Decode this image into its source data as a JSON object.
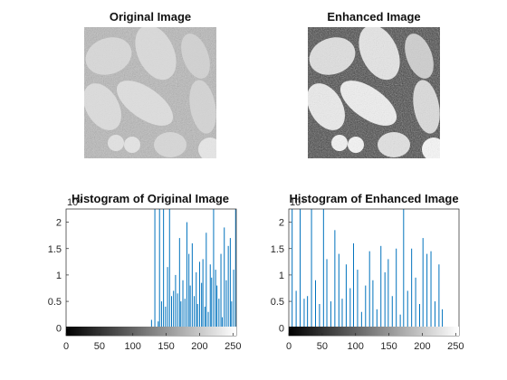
{
  "panels": {
    "original_title": "Original Image",
    "enhanced_title": "Enhanced Image"
  },
  "chart_data": [
    {
      "type": "bar",
      "title": "Histogram of Original Image",
      "exponent_label": "10⁴",
      "xlim": [
        0,
        255
      ],
      "ylim": [
        -0.15,
        2.25
      ],
      "xticks": [
        0,
        50,
        100,
        150,
        200,
        250
      ],
      "yticks": [
        0,
        0.5,
        1,
        1.5,
        2
      ],
      "color": "#0072bd",
      "bins": [
        128,
        133,
        138,
        140,
        143,
        146,
        149,
        152,
        155,
        158,
        161,
        164,
        167,
        170,
        172,
        175,
        178,
        181,
        184,
        186,
        189,
        192,
        195,
        197,
        200,
        203,
        205,
        208,
        210,
        213,
        216,
        218,
        221,
        224,
        226,
        229,
        232,
        234,
        237,
        240,
        243,
        246,
        248,
        251,
        254
      ],
      "values": [
        0.15,
        2.25,
        0.12,
        2.25,
        0.5,
        2.25,
        0.4,
        1.15,
        2.25,
        0.6,
        0.7,
        1.0,
        0.65,
        1.7,
        0.5,
        0.9,
        0.55,
        2.0,
        1.4,
        0.8,
        1.6,
        0.6,
        1.05,
        0.45,
        1.25,
        0.85,
        1.3,
        0.4,
        1.8,
        0.3,
        1.2,
        0.95,
        2.25,
        1.1,
        0.8,
        0.55,
        1.4,
        0.2,
        1.9,
        0.9,
        1.55,
        1.7,
        0.5,
        1.1,
        2.25
      ]
    },
    {
      "type": "bar",
      "title": "Histogram of Enhanced Image",
      "exponent_label": "10⁴",
      "xlim": [
        0,
        255
      ],
      "ylim": [
        -0.15,
        2.25
      ],
      "xticks": [
        0,
        50,
        100,
        150,
        200,
        250
      ],
      "yticks": [
        0,
        0.5,
        1,
        1.5,
        2
      ],
      "color": "#0072bd",
      "bins": [
        5,
        11,
        17,
        23,
        28,
        34,
        40,
        46,
        52,
        57,
        63,
        69,
        75,
        80,
        86,
        92,
        97,
        103,
        109,
        115,
        121,
        126,
        132,
        138,
        144,
        149,
        155,
        161,
        167,
        172,
        178,
        184,
        190,
        196,
        201,
        207,
        213,
        219,
        225,
        230
      ],
      "values": [
        2.25,
        0.7,
        2.25,
        0.55,
        0.6,
        2.25,
        0.9,
        0.45,
        2.25,
        1.3,
        0.5,
        1.85,
        1.4,
        0.55,
        1.2,
        0.75,
        1.6,
        1.1,
        0.3,
        0.8,
        1.45,
        0.9,
        0.35,
        1.55,
        1.05,
        1.3,
        0.6,
        1.5,
        0.25,
        2.25,
        0.7,
        1.5,
        0.95,
        0.45,
        1.7,
        1.4,
        1.45,
        0.5,
        1.2,
        0.35
      ]
    }
  ]
}
